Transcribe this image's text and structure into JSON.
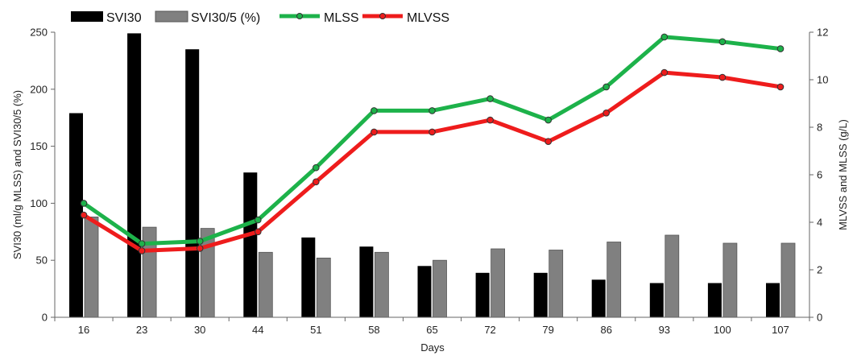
{
  "chart_data": {
    "type": "bar",
    "xlabel": "Days",
    "ylabel_left": "SVI30 (ml/g MLSS) and  SVI30/5 (%)",
    "ylabel_right": "MLVSS and MLSS (g/L)",
    "categories": [
      "16",
      "23",
      "30",
      "44",
      "51",
      "58",
      "65",
      "72",
      "79",
      "86",
      "93",
      "100",
      "107"
    ],
    "ylim_left": [
      0,
      250
    ],
    "yticks_left": [
      "0",
      "50",
      "100",
      "150",
      "200",
      "250"
    ],
    "ylim_right": [
      0,
      12
    ],
    "yticks_right": [
      "0",
      "2",
      "4",
      "6",
      "8",
      "10",
      "12"
    ],
    "grid": false,
    "legend_position": "top",
    "bar_series": [
      {
        "name": "SVI30",
        "color": "#000000",
        "values": [
          179,
          249,
          235,
          127,
          70,
          62,
          45,
          39,
          39,
          33,
          30,
          30,
          30
        ]
      },
      {
        "name": "SVI30/5 (%)",
        "color": "#808080",
        "values": [
          88,
          79,
          78,
          57,
          52,
          57,
          50,
          60,
          59,
          66,
          72,
          65,
          65
        ]
      }
    ],
    "line_series": [
      {
        "name": "MLSS",
        "color": "#1db24a",
        "values": [
          4.8,
          3.1,
          3.2,
          4.1,
          6.3,
          8.7,
          8.7,
          9.2,
          8.3,
          9.7,
          11.8,
          11.6,
          11.3
        ]
      },
      {
        "name": "MLVSS",
        "color": "#ee1c1c",
        "values": [
          4.3,
          2.8,
          2.9,
          3.6,
          5.7,
          7.8,
          7.8,
          8.3,
          7.4,
          8.6,
          10.3,
          10.1,
          9.7
        ]
      }
    ]
  }
}
